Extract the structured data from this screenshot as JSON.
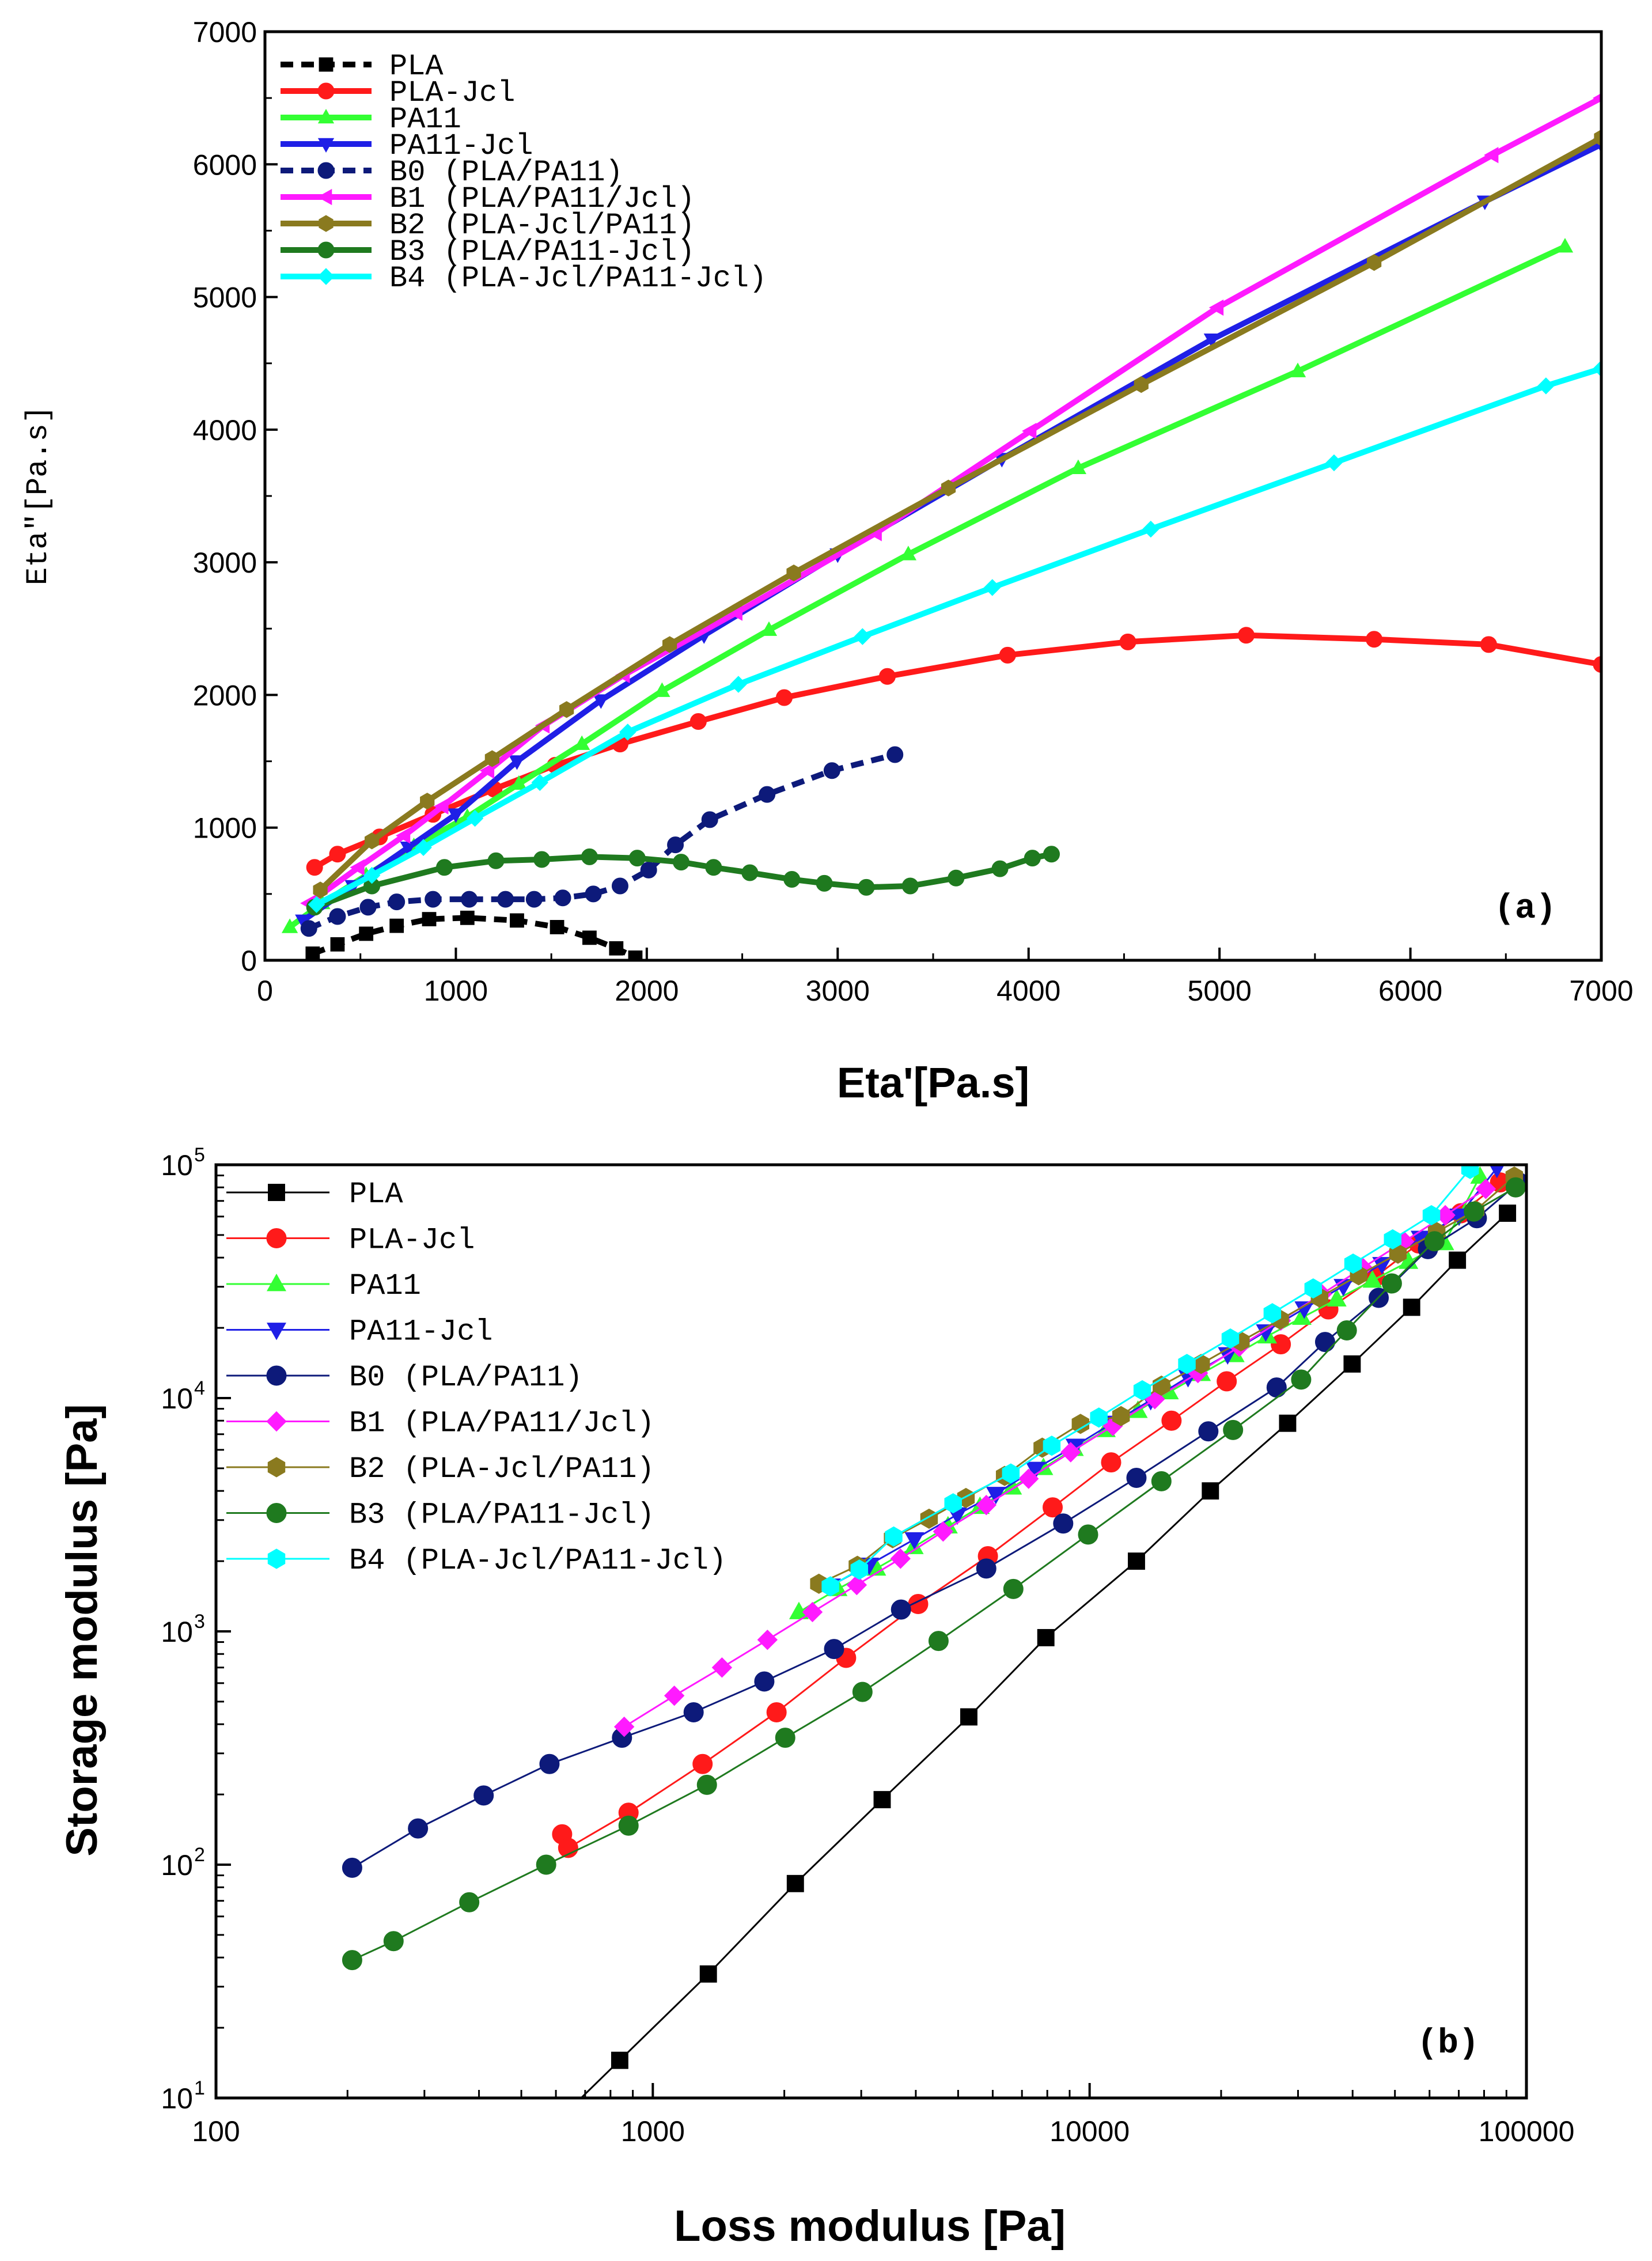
{
  "chart_data": [
    {
      "type": "line",
      "panel_label": "(a)",
      "xlabel": "Eta'[Pa.s]",
      "ylabel": "Eta\"[Pa.s]",
      "xlim": [
        0,
        7000
      ],
      "ylim": [
        0,
        7000
      ],
      "xticks": [
        0,
        1000,
        2000,
        3000,
        4000,
        5000,
        6000,
        7000
      ],
      "yticks": [
        0,
        1000,
        2000,
        3000,
        4000,
        5000,
        6000,
        7000
      ],
      "legend_position": "top-left",
      "series": [
        {
          "name": "PLA",
          "color": "#000000",
          "marker": "square",
          "dashed": true,
          "width": 10,
          "x": [
            250,
            380,
            530,
            690,
            860,
            1060,
            1320,
            1530,
            1700,
            1840,
            1940
          ],
          "y": [
            50,
            120,
            200,
            260,
            310,
            320,
            300,
            250,
            170,
            90,
            20
          ]
        },
        {
          "name": "PLA-Jcl",
          "color": "#ff1a1a",
          "marker": "circle",
          "dashed": false,
          "width": 10,
          "x": [
            260,
            380,
            600,
            880,
            1200,
            1520,
            1860,
            2270,
            2720,
            3260,
            3890,
            4520,
            5140,
            5810,
            6410,
            7000
          ],
          "y": [
            700,
            800,
            930,
            1100,
            1290,
            1470,
            1630,
            1800,
            1980,
            2140,
            2300,
            2400,
            2450,
            2420,
            2380,
            2230
          ]
        },
        {
          "name": "PA11",
          "color": "#33ff33",
          "marker": "triangle-up",
          "dashed": false,
          "width": 10,
          "x": [
            130,
            300,
            530,
            780,
            1060,
            1330,
            1660,
            2080,
            2640,
            3370,
            4260,
            5410,
            6810
          ],
          "y": [
            250,
            430,
            640,
            860,
            1080,
            1330,
            1630,
            2030,
            2490,
            3060,
            3710,
            4440,
            5380
          ]
        },
        {
          "name": "PA11-Jcl",
          "color": "#1f1fe6",
          "marker": "triangle-down",
          "dashed": false,
          "width": 10,
          "x": [
            200,
            460,
            750,
            1000,
            1320,
            1760,
            2300,
            3000,
            3860,
            4960,
            6390,
            7000
          ],
          "y": [
            300,
            560,
            850,
            1100,
            1500,
            1960,
            2450,
            3060,
            3780,
            4680,
            5720,
            6150
          ]
        },
        {
          "name": "B0 (PLA/PA11)",
          "color": "#0d1a7a",
          "marker": "circle",
          "dashed": true,
          "width": 10,
          "x": [
            230,
            380,
            540,
            690,
            880,
            1070,
            1260,
            1410,
            1560,
            1720,
            1860,
            2010,
            2150,
            2330,
            2630,
            2970,
            3300
          ],
          "y": [
            240,
            330,
            400,
            440,
            460,
            460,
            460,
            460,
            470,
            500,
            560,
            680,
            870,
            1060,
            1250,
            1430,
            1550
          ]
        },
        {
          "name": "B1 (PLA/PA11/Jcl)",
          "color": "#ff1aff",
          "marker": "triangle-left",
          "dashed": false,
          "width": 10,
          "x": [
            230,
            490,
            730,
            930,
            1170,
            1460,
            1880,
            2470,
            3200,
            4010,
            4990,
            6430,
            7000
          ],
          "y": [
            430,
            700,
            940,
            1160,
            1430,
            1770,
            2150,
            2620,
            3220,
            3990,
            4920,
            6070,
            6500
          ]
        },
        {
          "name": "B2 (PLA-Jcl/PA11)",
          "color": "#8a7a1f",
          "marker": "hexagon",
          "dashed": false,
          "width": 10,
          "x": [
            290,
            560,
            850,
            1190,
            1580,
            2120,
            2770,
            3580,
            4590,
            5810,
            7000
          ],
          "y": [
            530,
            900,
            1200,
            1520,
            1890,
            2380,
            2920,
            3560,
            4340,
            5260,
            6200
          ]
        },
        {
          "name": "B3 (PLA/PA11-Jcl)",
          "color": "#1f7a1f",
          "marker": "circle",
          "dashed": false,
          "width": 10,
          "x": [
            260,
            560,
            940,
            1210,
            1450,
            1700,
            1950,
            2180,
            2350,
            2540,
            2760,
            2930,
            3150,
            3380,
            3620,
            3850,
            4020,
            4120
          ],
          "y": [
            400,
            560,
            700,
            750,
            760,
            780,
            770,
            740,
            700,
            660,
            610,
            580,
            550,
            560,
            620,
            690,
            770,
            800
          ]
        },
        {
          "name": "B4 (PLA-Jcl/PA11-Jcl)",
          "color": "#00ffff",
          "marker": "diamond",
          "dashed": false,
          "width": 10,
          "x": [
            270,
            560,
            830,
            1100,
            1440,
            1900,
            2480,
            3130,
            3810,
            4640,
            5600,
            6710,
            7000
          ],
          "y": [
            420,
            640,
            850,
            1070,
            1340,
            1720,
            2080,
            2440,
            2810,
            3250,
            3750,
            4330,
            4460
          ]
        }
      ]
    },
    {
      "type": "scatter",
      "panel_label": "(b)",
      "xlabel": "Loss modulus [Pa]",
      "ylabel": "Storage modulus [Pa]",
      "xscale": "log",
      "yscale": "log",
      "xlim": [
        100,
        100000
      ],
      "ylim": [
        10,
        100000
      ],
      "xticks": [
        "100",
        "1000",
        "10000",
        "100000"
      ],
      "yticks_base": "10",
      "yticks_exp": [
        "1",
        "2",
        "3",
        "4",
        "5"
      ],
      "legend_position": "top-left",
      "series": [
        {
          "name": "PLA",
          "color": "#000000",
          "marker": "square",
          "x": [
            840,
            1340,
            2120,
            3350,
            5290,
            7940,
            12800,
            18900,
            28400,
            39900,
            54600,
            69500,
            90500
          ],
          "y": [
            14.5,
            34,
            83,
            190,
            430,
            940,
            2000,
            4000,
            7800,
            14000,
            24500,
            39000,
            62000
          ]
        },
        {
          "name": "PLA-Jcl",
          "color": "#ff1a1a",
          "marker": "circle",
          "x": [
            620,
            640,
            880,
            1300,
            1920,
            2770,
            4050,
            5850,
            8230,
            11200,
            15400,
            20600,
            27400,
            35200,
            45000,
            56700,
            70800,
            87000
          ],
          "y": [
            135,
            118,
            167,
            270,
            450,
            770,
            1310,
            2100,
            3400,
            5300,
            8000,
            11800,
            17000,
            24000,
            33000,
            46000,
            62000,
            84000
          ]
        },
        {
          "name": "PA11",
          "color": "#33ff33",
          "marker": "triangle-up",
          "x": [
            2160,
            2650,
            3250,
            3960,
            4740,
            5610,
            6650,
            7840,
            9210,
            10900,
            12900,
            15200,
            18000,
            21500,
            25500,
            30600,
            36800,
            44400,
            53700,
            64900,
            78300
          ],
          "y": [
            1210,
            1520,
            1860,
            2300,
            2820,
            3420,
            4140,
            5020,
            6060,
            7300,
            8820,
            10600,
            12700,
            15300,
            18400,
            22100,
            26500,
            31900,
            38400,
            46200,
            89000
          ]
        },
        {
          "name": "PA11-Jcl",
          "color": "#1f1fe6",
          "marker": "triangle-down",
          "x": [
            2560,
            3130,
            3970,
            4980,
            6100,
            7510,
            9270,
            11300,
            13800,
            16800,
            20700,
            25300,
            31000,
            38100,
            46700,
            57200,
            70100,
            85600
          ],
          "y": [
            1570,
            1930,
            2480,
            3170,
            3880,
            4970,
            6240,
            7830,
            9800,
            12300,
            15400,
            19300,
            24200,
            30200,
            37500,
            48600,
            60500,
            97000
          ]
        },
        {
          "name": "B0 (PLA/PA11)",
          "color": "#0d1a7a",
          "marker": "circle",
          "x": [
            205,
            290,
            410,
            580,
            850,
            1240,
            1800,
            2600,
            3700,
            5800,
            8700,
            12800,
            18700,
            26800,
            34600,
            45900,
            59500,
            77000,
            96000
          ],
          "y": [
            97,
            143,
            198,
            270,
            350,
            450,
            610,
            840,
            1240,
            1860,
            2900,
            4550,
            7200,
            11100,
            17400,
            26900,
            43500,
            59000,
            84000
          ]
        },
        {
          "name": "B1 (PLA/PA11/Jcl)",
          "color": "#ff1aff",
          "marker": "diamond",
          "x": [
            860,
            1120,
            1440,
            1830,
            2320,
            2930,
            3690,
            4620,
            5800,
            7250,
            9050,
            11300,
            14100,
            17700,
            22000,
            27400,
            34000,
            42200,
            52500,
            65200,
            80700
          ],
          "y": [
            390,
            530,
            700,
            920,
            1210,
            1580,
            2050,
            2680,
            3480,
            4510,
            5860,
            7600,
            9900,
            12800,
            16600,
            21500,
            27900,
            36200,
            46900,
            60800,
            78800
          ]
        },
        {
          "name": "B2 (PLA-Jcl/PA11)",
          "color": "#8a7a1f",
          "marker": "hexagon",
          "x": [
            2400,
            2940,
            3540,
            4290,
            5210,
            6390,
            7790,
            9530,
            11800,
            14600,
            18000,
            22200,
            27300,
            33600,
            41300,
            50800,
            62300,
            76500,
            93800
          ],
          "y": [
            1600,
            1910,
            2510,
            3040,
            3730,
            4640,
            6130,
            7750,
            8370,
            11300,
            14000,
            17500,
            21700,
            27000,
            33600,
            41600,
            51500,
            63800,
            89000
          ]
        },
        {
          "name": "B3 (PLA/PA11-Jcl)",
          "color": "#1f7a1f",
          "marker": "circle",
          "x": [
            205,
            255,
            380,
            570,
            880,
            1330,
            2010,
            3020,
            4510,
            6690,
            9920,
            14600,
            21300,
            30500,
            38800,
            49200,
            61600,
            75800,
            94500
          ],
          "y": [
            39,
            47,
            69,
            100,
            147,
            220,
            350,
            550,
            910,
            1520,
            2600,
            4400,
            7300,
            12000,
            19500,
            31000,
            47000,
            63000,
            80000
          ]
        },
        {
          "name": "B4 (PLA-Jcl/PA11-Jcl)",
          "color": "#00ffff",
          "marker": "hexagon",
          "x": [
            2550,
            2970,
            3560,
            4870,
            6600,
            8190,
            10500,
            13200,
            16700,
            21000,
            26200,
            32500,
            40100,
            49400,
            60600,
            74300
          ],
          "y": [
            1560,
            1840,
            2550,
            3540,
            4750,
            6250,
            8250,
            10800,
            14000,
            18000,
            23100,
            29500,
            37700,
            47900,
            60800,
            96000
          ]
        }
      ]
    }
  ]
}
